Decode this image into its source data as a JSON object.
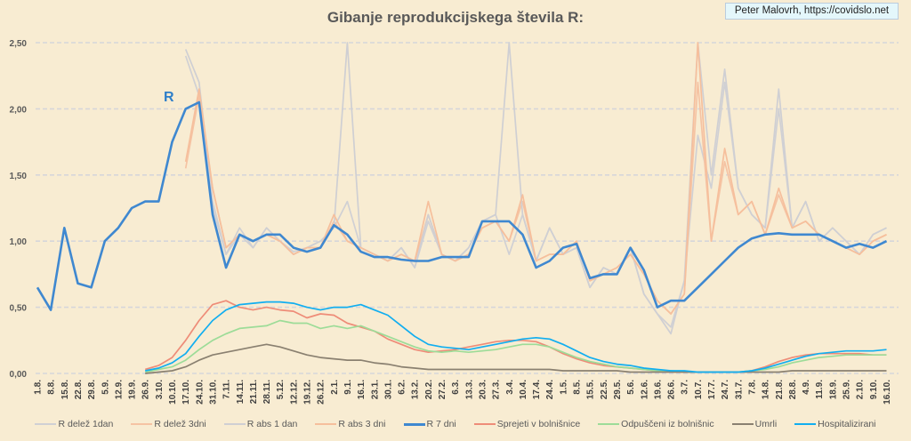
{
  "chart_data": {
    "type": "line",
    "title": "Gibanje reprodukcijskega števila R:",
    "credit": "Peter Malovrh, https://covidslo.net",
    "annotation": "R",
    "xlabel": "",
    "ylabel": "",
    "ylim": [
      0,
      2.5
    ],
    "yticks": [
      "0,00",
      "0,50",
      "1,00",
      "1,50",
      "2,00",
      "2,50"
    ],
    "grid": true,
    "legend_position": "bottom",
    "categories": [
      "1.8.",
      "8.8.",
      "15.8.",
      "22.8.",
      "29.8.",
      "5.9.",
      "12.9.",
      "19.9.",
      "26.9.",
      "3.10.",
      "10.10.",
      "17.10.",
      "24.10.",
      "31.10.",
      "7.11.",
      "14.11.",
      "21.11.",
      "28.11.",
      "5.12.",
      "12.12.",
      "19.12.",
      "26.12.",
      "2.1.",
      "9.1.",
      "16.1.",
      "23.1.",
      "30.1.",
      "6.2.",
      "13.2.",
      "20.2.",
      "27.2.",
      "6.3.",
      "13.3.",
      "20.3.",
      "27.3.",
      "3.4.",
      "10.4.",
      "17.4.",
      "24.4.",
      "1.5.",
      "8.5.",
      "15.5.",
      "22.5.",
      "29.5.",
      "5.6.",
      "12.6.",
      "19.6.",
      "26.6.",
      "3.7.",
      "10.7.",
      "17.7.",
      "24.7.",
      "31.7.",
      "7.8.",
      "14.8.",
      "21.8.",
      "28.8.",
      "4.9.",
      "11.9.",
      "18.9.",
      "25.9.",
      "2.10.",
      "9.10.",
      "16.10."
    ],
    "series": [
      {
        "name": "R delež 1dan",
        "color": "#d0d0d4",
        "values": [
          null,
          null,
          null,
          null,
          null,
          null,
          null,
          null,
          null,
          null,
          null,
          2.4,
          2.1,
          1.25,
          0.9,
          1.05,
          0.95,
          1.1,
          1.0,
          0.92,
          0.95,
          1.0,
          1.1,
          1.3,
          0.95,
          0.9,
          0.85,
          0.95,
          0.8,
          1.15,
          0.9,
          0.85,
          0.95,
          1.15,
          1.2,
          0.9,
          1.2,
          0.85,
          1.1,
          0.9,
          0.95,
          0.65,
          0.8,
          0.75,
          0.95,
          0.6,
          0.45,
          0.35,
          0.7,
          1.8,
          1.4,
          2.2,
          1.4,
          1.2,
          1.1,
          2.0,
          1.1,
          1.3,
          1.0,
          1.1,
          1.0,
          0.9,
          1.05,
          1.1
        ]
      },
      {
        "name": "R delež 3dni",
        "color": "#f5c3a3",
        "values": [
          null,
          null,
          null,
          null,
          null,
          null,
          null,
          null,
          null,
          null,
          null,
          1.55,
          2.1,
          1.4,
          0.95,
          1.05,
          1.0,
          1.05,
          1.0,
          0.9,
          0.95,
          0.95,
          1.15,
          1.0,
          0.95,
          0.9,
          0.85,
          0.9,
          0.85,
          1.2,
          0.9,
          0.85,
          0.9,
          1.1,
          1.15,
          1.0,
          1.3,
          0.85,
          0.9,
          0.9,
          1.0,
          0.7,
          0.75,
          0.8,
          0.9,
          0.75,
          0.55,
          0.45,
          0.6,
          2.2,
          1.0,
          1.6,
          1.2,
          1.3,
          1.05,
          1.35,
          1.1,
          1.15,
          1.05,
          1.0,
          0.95,
          0.9,
          1.0,
          1.05
        ]
      },
      {
        "name": "R abs 1 dan",
        "color": "#cfcfd3",
        "values": [
          null,
          null,
          null,
          null,
          null,
          null,
          null,
          null,
          null,
          null,
          null,
          2.45,
          2.2,
          1.3,
          0.9,
          1.1,
          0.95,
          1.1,
          1.0,
          0.9,
          0.95,
          1.0,
          1.1,
          2.5,
          0.95,
          0.9,
          0.85,
          0.95,
          0.8,
          1.2,
          0.9,
          0.85,
          0.95,
          1.15,
          1.2,
          2.5,
          1.2,
          0.85,
          1.1,
          0.9,
          0.95,
          0.65,
          0.8,
          0.75,
          0.95,
          0.6,
          0.45,
          0.3,
          0.7,
          2.5,
          1.5,
          2.3,
          1.4,
          1.2,
          1.1,
          2.15,
          1.1,
          1.3,
          1.0,
          1.1,
          1.0,
          0.9,
          1.05,
          1.1
        ]
      },
      {
        "name": "R abs 3 dni",
        "color": "#f6bf9c",
        "values": [
          null,
          null,
          null,
          null,
          null,
          null,
          null,
          null,
          null,
          null,
          null,
          1.6,
          2.15,
          1.4,
          0.95,
          1.05,
          1.0,
          1.05,
          1.0,
          0.9,
          0.95,
          0.95,
          1.2,
          1.0,
          0.95,
          0.9,
          0.85,
          0.9,
          0.85,
          1.3,
          0.9,
          0.85,
          0.9,
          1.1,
          1.15,
          1.0,
          1.35,
          0.85,
          0.9,
          0.9,
          1.0,
          0.7,
          0.75,
          0.8,
          0.9,
          0.75,
          0.55,
          0.45,
          0.6,
          2.5,
          1.0,
          1.7,
          1.2,
          1.3,
          1.05,
          1.4,
          1.1,
          1.15,
          1.05,
          1.0,
          0.95,
          0.9,
          1.0,
          1.05
        ]
      },
      {
        "name": "R 7 dni",
        "color": "#3f88d0",
        "values": [
          0.65,
          0.48,
          1.1,
          0.68,
          0.65,
          1.0,
          1.1,
          1.25,
          1.3,
          1.3,
          1.75,
          2.0,
          2.05,
          1.2,
          0.8,
          1.05,
          1.0,
          1.05,
          1.05,
          0.95,
          0.92,
          0.95,
          1.12,
          1.05,
          0.92,
          0.88,
          0.88,
          0.86,
          0.85,
          0.85,
          0.88,
          0.88,
          0.88,
          1.15,
          1.15,
          1.15,
          1.05,
          0.8,
          0.85,
          0.95,
          0.98,
          0.72,
          0.75,
          0.75,
          0.95,
          0.78,
          0.5,
          0.55,
          0.55,
          0.65,
          0.75,
          0.85,
          0.95,
          1.02,
          1.05,
          1.06,
          1.05,
          1.05,
          1.05,
          1.0,
          0.95,
          0.98,
          0.95,
          1.0
        ]
      },
      {
        "name": "Sprejeti v bolnišnice",
        "color": "#ee8c78",
        "values": [
          null,
          null,
          null,
          null,
          null,
          null,
          null,
          null,
          0.03,
          0.06,
          0.12,
          0.25,
          0.4,
          0.52,
          0.55,
          0.5,
          0.48,
          0.5,
          0.48,
          0.47,
          0.42,
          0.45,
          0.44,
          0.38,
          0.35,
          0.32,
          0.26,
          0.22,
          0.18,
          0.16,
          0.17,
          0.18,
          0.2,
          0.22,
          0.24,
          0.25,
          0.25,
          0.24,
          0.2,
          0.15,
          0.11,
          0.08,
          0.06,
          0.05,
          0.04,
          0.03,
          0.02,
          0.02,
          0.01,
          0.01,
          0.01,
          0.01,
          0.01,
          0.02,
          0.05,
          0.09,
          0.12,
          0.14,
          0.15,
          0.15,
          0.15,
          0.15,
          0.14,
          0.14
        ]
      },
      {
        "name": "Odpuščeni iz bolnišnic",
        "color": "#9ddc98",
        "values": [
          null,
          null,
          null,
          null,
          null,
          null,
          null,
          null,
          0.01,
          0.03,
          0.05,
          0.1,
          0.18,
          0.25,
          0.3,
          0.34,
          0.35,
          0.36,
          0.4,
          0.38,
          0.38,
          0.34,
          0.36,
          0.34,
          0.36,
          0.32,
          0.28,
          0.24,
          0.2,
          0.17,
          0.16,
          0.17,
          0.16,
          0.17,
          0.18,
          0.2,
          0.22,
          0.22,
          0.2,
          0.16,
          0.12,
          0.09,
          0.07,
          0.05,
          0.04,
          0.03,
          0.02,
          0.02,
          0.01,
          0.01,
          0.01,
          0.01,
          0.01,
          0.02,
          0.03,
          0.05,
          0.08,
          0.1,
          0.12,
          0.13,
          0.14,
          0.14,
          0.14,
          0.14
        ]
      },
      {
        "name": "Umrli",
        "color": "#8a8070",
        "values": [
          null,
          null,
          null,
          null,
          null,
          null,
          null,
          null,
          0.0,
          0.01,
          0.02,
          0.05,
          0.1,
          0.14,
          0.16,
          0.18,
          0.2,
          0.22,
          0.2,
          0.17,
          0.14,
          0.12,
          0.11,
          0.1,
          0.1,
          0.08,
          0.07,
          0.05,
          0.04,
          0.03,
          0.03,
          0.03,
          0.03,
          0.03,
          0.03,
          0.03,
          0.03,
          0.03,
          0.03,
          0.02,
          0.02,
          0.02,
          0.02,
          0.02,
          0.01,
          0.01,
          0.01,
          0.01,
          0.01,
          0.01,
          0.01,
          0.01,
          0.01,
          0.01,
          0.01,
          0.01,
          0.02,
          0.02,
          0.02,
          0.02,
          0.02,
          0.02,
          0.02,
          0.02
        ]
      },
      {
        "name": "Hospitalizirani",
        "color": "#11aef0",
        "values": [
          null,
          null,
          null,
          null,
          null,
          null,
          null,
          null,
          0.02,
          0.04,
          0.08,
          0.15,
          0.28,
          0.4,
          0.48,
          0.52,
          0.53,
          0.54,
          0.54,
          0.53,
          0.5,
          0.48,
          0.5,
          0.5,
          0.52,
          0.48,
          0.44,
          0.36,
          0.28,
          0.22,
          0.2,
          0.19,
          0.18,
          0.2,
          0.22,
          0.24,
          0.26,
          0.27,
          0.26,
          0.22,
          0.17,
          0.12,
          0.09,
          0.07,
          0.06,
          0.04,
          0.03,
          0.02,
          0.02,
          0.01,
          0.01,
          0.01,
          0.01,
          0.02,
          0.04,
          0.07,
          0.1,
          0.13,
          0.15,
          0.16,
          0.17,
          0.17,
          0.17,
          0.18
        ]
      }
    ]
  }
}
